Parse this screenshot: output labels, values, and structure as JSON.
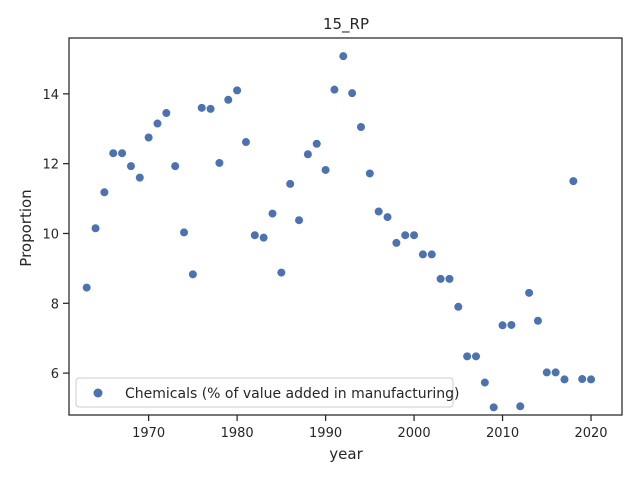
{
  "chart_data": {
    "type": "scatter",
    "title": "15_RP",
    "xlabel": "year",
    "ylabel": "Proportion",
    "xlim": [
      1961,
      2023.5
    ],
    "ylim": [
      4.8,
      15.6
    ],
    "xticks": [
      1970,
      1980,
      1990,
      2000,
      2010,
      2020
    ],
    "yticks": [
      6,
      8,
      10,
      12,
      14
    ],
    "grid": false,
    "legend_position": "lower-left",
    "marker_color": "#4c72b0",
    "series": [
      {
        "name": "Chemicals (% of value added in manufacturing)",
        "x": [
          1963,
          1964,
          1965,
          1966,
          1967,
          1968,
          1969,
          1970,
          1971,
          1972,
          1973,
          1974,
          1975,
          1976,
          1977,
          1978,
          1979,
          1980,
          1981,
          1982,
          1983,
          1984,
          1985,
          1986,
          1987,
          1988,
          1989,
          1990,
          1991,
          1992,
          1993,
          1994,
          1995,
          1996,
          1997,
          1998,
          1999,
          2000,
          2001,
          2002,
          2003,
          2004,
          2005,
          2006,
          2007,
          2008,
          2009,
          2010,
          2011,
          2012,
          2013,
          2014,
          2015,
          2016,
          2017,
          2018,
          2019,
          2020
        ],
        "y": [
          8.45,
          10.15,
          11.18,
          12.3,
          12.3,
          11.93,
          11.6,
          12.75,
          13.15,
          13.45,
          11.93,
          10.03,
          8.83,
          13.6,
          13.57,
          12.02,
          13.83,
          14.1,
          12.62,
          9.95,
          9.88,
          10.57,
          8.88,
          11.42,
          10.38,
          12.27,
          12.57,
          11.82,
          14.12,
          15.08,
          14.02,
          13.05,
          11.72,
          10.63,
          10.47,
          9.73,
          9.95,
          9.95,
          9.4,
          9.4,
          8.7,
          8.7,
          7.9,
          6.48,
          6.48,
          5.73,
          5.02,
          7.37,
          7.38,
          5.05,
          8.3,
          7.5,
          6.02,
          6.02,
          5.82,
          11.5,
          5.83,
          5.82
        ]
      }
    ]
  }
}
